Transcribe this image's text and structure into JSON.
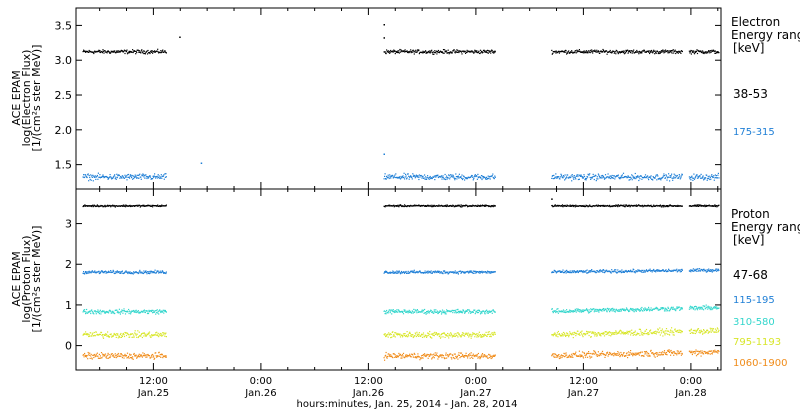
{
  "chart_data": [
    {
      "type": "scatter",
      "ylabel_lines": [
        "ACE EPAM",
        "log(Electron Flux)",
        "[1/(cm²s ster MeV)]"
      ],
      "yticks": [
        "1.5",
        "2.0",
        "2.5",
        "3.0",
        "3.5"
      ],
      "ylim": [
        1.15,
        3.75
      ],
      "legend_title": [
        "Electron",
        "Energy ranges",
        "[keV]"
      ],
      "series": [
        {
          "name": "38-53",
          "color": "#000000",
          "level": 3.13,
          "spread": 0.025
        },
        {
          "name": "175-315",
          "color": "#1f7fd6",
          "level": 1.33,
          "spread": 0.04
        }
      ],
      "outliers": [
        {
          "x": 0.62,
          "y": 3.34,
          "color": "#000000"
        },
        {
          "x": 1.57,
          "y": 3.52,
          "color": "#000000"
        },
        {
          "x": 1.57,
          "y": 3.33,
          "color": "#000000"
        },
        {
          "x": 1.57,
          "y": 1.66,
          "color": "#1f7fd6"
        },
        {
          "x": 0.72,
          "y": 1.53,
          "color": "#1f7fd6"
        }
      ]
    },
    {
      "type": "scatter",
      "ylabel_lines": [
        "ACE EPAM",
        "log(Proton Flux)",
        "[1/(cm²s ster MeV)]"
      ],
      "yticks": [
        "0",
        "1",
        "2",
        "3"
      ],
      "ylim": [
        -0.6,
        3.85
      ],
      "legend_title": [
        "Proton",
        "Energy ranges",
        "[keV]"
      ],
      "series": [
        {
          "name": "47-68",
          "color": "#000000",
          "level": 3.45,
          "spread": 0.02
        },
        {
          "name": "115-195",
          "color": "#1f7fd6",
          "level": 1.82,
          "spread": 0.035
        },
        {
          "name": "310-580",
          "color": "#33d6cc",
          "level": 0.85,
          "spread": 0.05
        },
        {
          "name": "795-1193",
          "color": "#d8e62a",
          "level": 0.28,
          "spread": 0.07
        },
        {
          "name": "1060-1900",
          "color": "#f08c1a",
          "level": -0.24,
          "spread": 0.07
        }
      ],
      "outliers": [
        {
          "x": 2.35,
          "y": 3.62,
          "color": "#000000"
        }
      ]
    }
  ],
  "x_axis": {
    "xlim_days": [
      0.14,
      3.14
    ],
    "xlabel": "hours:minutes, Jan. 25, 2014 - Jan. 28, 2014",
    "ticks": [
      {
        "day": 0.5,
        "time": "12:00",
        "date": "Jan.25"
      },
      {
        "day": 1.0,
        "time": "0:00",
        "date": "Jan.26"
      },
      {
        "day": 1.5,
        "time": "12:00",
        "date": "Jan.26"
      },
      {
        "day": 2.0,
        "time": "0:00",
        "date": "Jan.27"
      },
      {
        "day": 2.5,
        "time": "12:00",
        "date": "Jan.27"
      },
      {
        "day": 3.0,
        "time": "0:00",
        "date": "Jan.28"
      }
    ],
    "data_segments_days": [
      [
        0.17,
        0.56
      ],
      [
        1.57,
        2.09
      ],
      [
        2.35,
        2.96
      ],
      [
        2.99,
        3.13
      ]
    ]
  }
}
